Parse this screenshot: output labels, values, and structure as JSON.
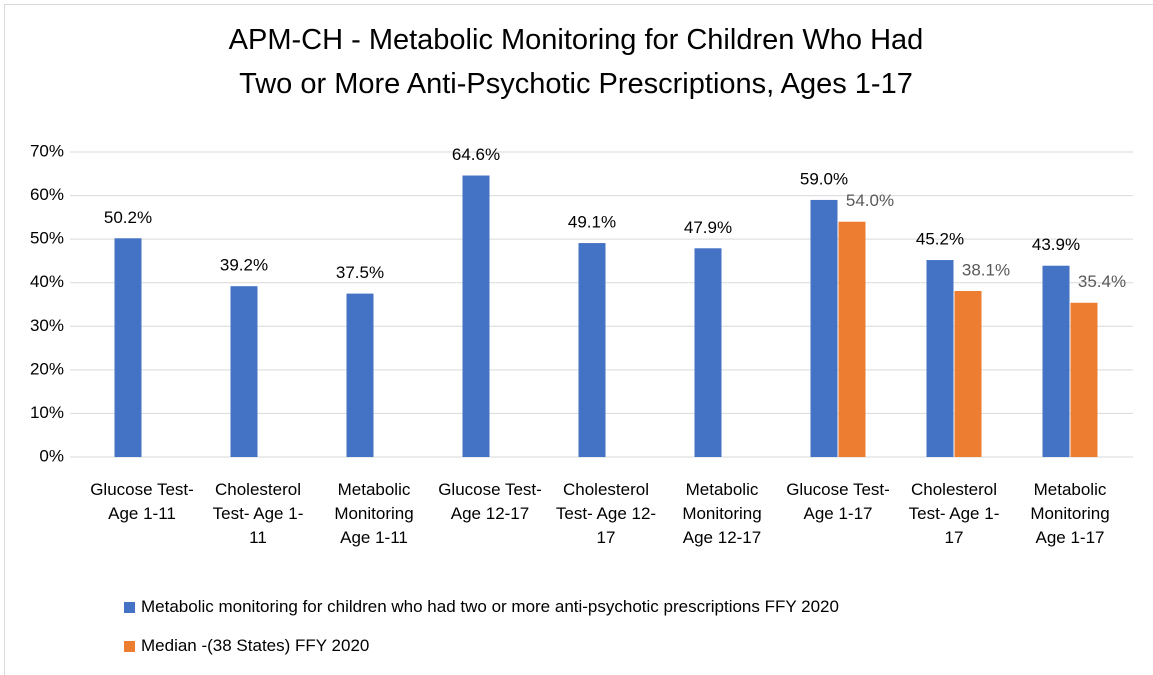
{
  "chart_data": {
    "type": "bar",
    "title": "APM-CH - Metabolic Monitoring for Children Who Had Two or More Anti-Psychotic Prescriptions, Ages 1-17",
    "categories": [
      "Glucose Test- Age 1-11",
      "Cholesterol Test- Age 1-11",
      "Metabolic Monitoring Age 1-11",
      "Glucose Test- Age 12-17",
      "Cholesterol Test- Age 12-17",
      "Metabolic Monitoring Age 12-17",
      "Glucose Test- Age 1-17",
      "Cholesterol Test- Age 1-17",
      "Metabolic Monitoring Age 1-17"
    ],
    "series": [
      {
        "name": "Metabolic monitoring for children who had two or more anti-psychotic prescriptions FFY 2020",
        "color": "#4472c4",
        "values": [
          50.2,
          39.2,
          37.5,
          64.6,
          49.1,
          47.9,
          59.0,
          45.2,
          43.9
        ],
        "value_labels": [
          "50.2%",
          "39.2%",
          "37.5%",
          "64.6%",
          "49.1%",
          "47.9%",
          "59.0%",
          "45.2%",
          "43.9%"
        ]
      },
      {
        "name": "Median -(38 States) FFY 2020",
        "color": "#ed7d31",
        "values": [
          null,
          null,
          null,
          null,
          null,
          null,
          54.0,
          38.1,
          35.4
        ],
        "value_labels": [
          null,
          null,
          null,
          null,
          null,
          null,
          "54.0%",
          "38.1%",
          "35.4%"
        ]
      }
    ],
    "ylim": [
      0,
      70
    ],
    "yticks": [
      {
        "value": 0,
        "label": "0%"
      },
      {
        "value": 10,
        "label": "10%"
      },
      {
        "value": 20,
        "label": "20%"
      },
      {
        "value": 30,
        "label": "30%"
      },
      {
        "value": 40,
        "label": "40%"
      },
      {
        "value": 50,
        "label": "50%"
      },
      {
        "value": 60,
        "label": "60%"
      },
      {
        "value": 70,
        "label": "70%"
      }
    ],
    "grid": true,
    "legend": "bottom"
  }
}
